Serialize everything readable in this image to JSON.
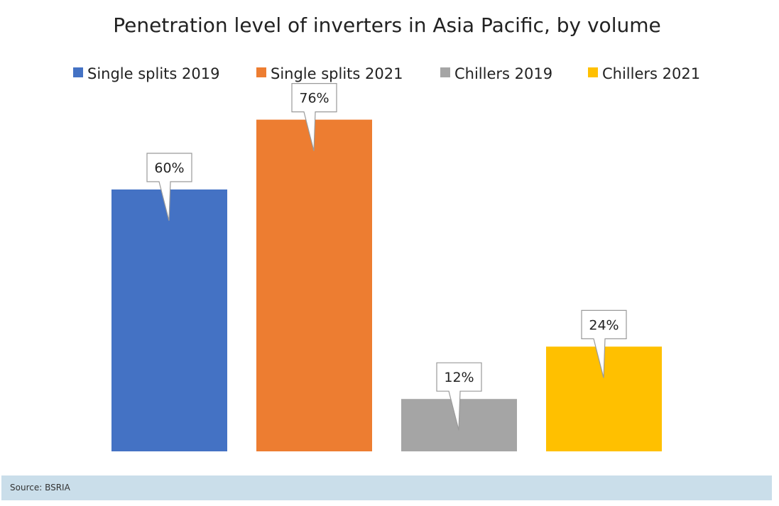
{
  "chart_data": {
    "type": "bar",
    "title": "Penetration level of inverters in Asia Pacific, by volume",
    "xlabel": "",
    "ylabel": "",
    "ylim": [
      0,
      80
    ],
    "series": [
      {
        "name": "Single splits  2019",
        "values": [
          60
        ],
        "label": "60%",
        "color": "#4472c4"
      },
      {
        "name": "Single splits  2021",
        "values": [
          76
        ],
        "label": "76%",
        "color": "#ed7d31"
      },
      {
        "name": "Chillers  2019",
        "values": [
          12
        ],
        "label": "12%",
        "color": "#a5a5a5"
      },
      {
        "name": "Chillers  2021",
        "values": [
          24
        ],
        "label": "24%",
        "color": "#ffc000"
      }
    ],
    "legend_position": "top",
    "grid": false
  },
  "source": {
    "text": "Source: BSRIA"
  }
}
